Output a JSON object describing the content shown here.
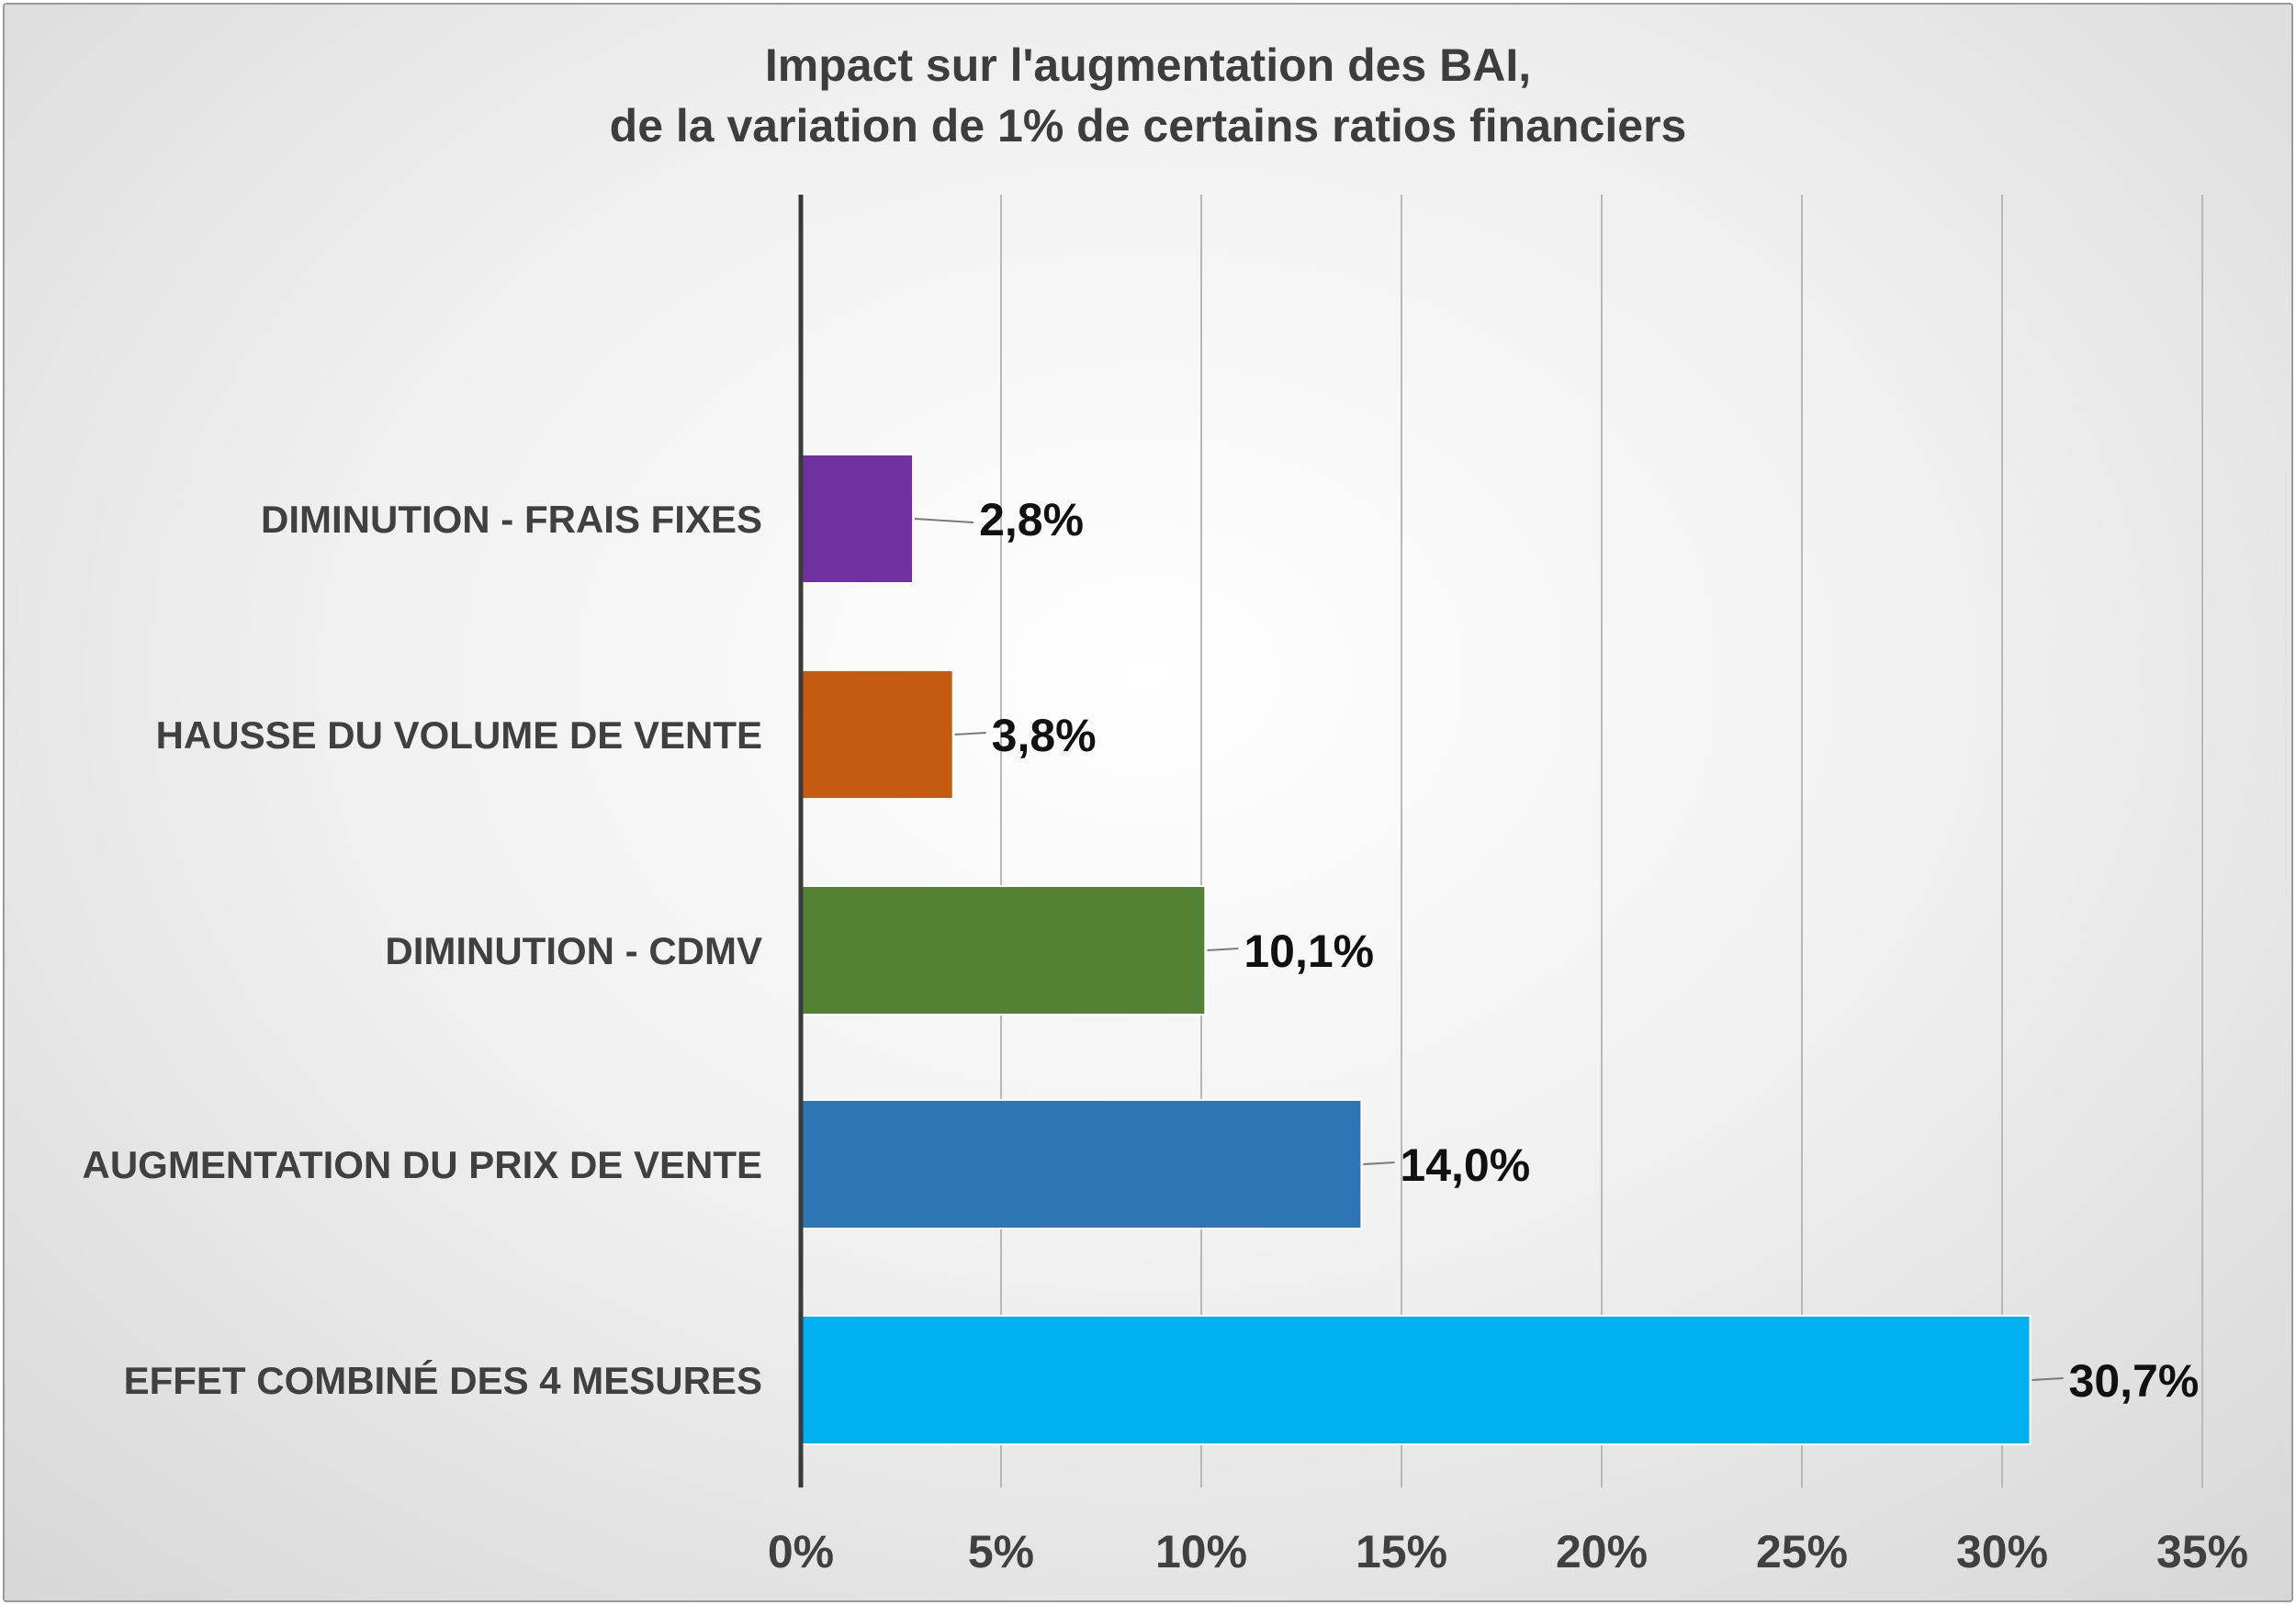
{
  "chart_data": {
    "type": "bar",
    "orientation": "horizontal",
    "title_lines": [
      "Impact sur l'augmentation des BAI,",
      "de la variation de 1% de certains ratios financiers"
    ],
    "categories": [
      "DIMINUTION - FRAIS FIXES",
      "HAUSSE DU VOLUME DE VENTE",
      "DIMINUTION - CDMV",
      "AUGMENTATION DU PRIX DE VENTE",
      "EFFET COMBINÉ DES 4 MESURES"
    ],
    "values": [
      0.028,
      0.038,
      0.101,
      0.14,
      0.307
    ],
    "data_labels": [
      "2,8%",
      "3,8%",
      "10,1%",
      "14,0%",
      "30,7%"
    ],
    "colors": [
      "#7030a0",
      "#c55a11",
      "#548235",
      "#2e75b6",
      "#00b0f0"
    ],
    "xlim": [
      0,
      0.35
    ],
    "xticks": [
      0,
      0.05,
      0.1,
      0.15,
      0.2,
      0.25,
      0.3,
      0.35
    ],
    "xtick_labels": [
      "0%",
      "5%",
      "10%",
      "15%",
      "20%",
      "25%",
      "30%",
      "35%"
    ],
    "grid": "vertical",
    "legend": "none"
  }
}
